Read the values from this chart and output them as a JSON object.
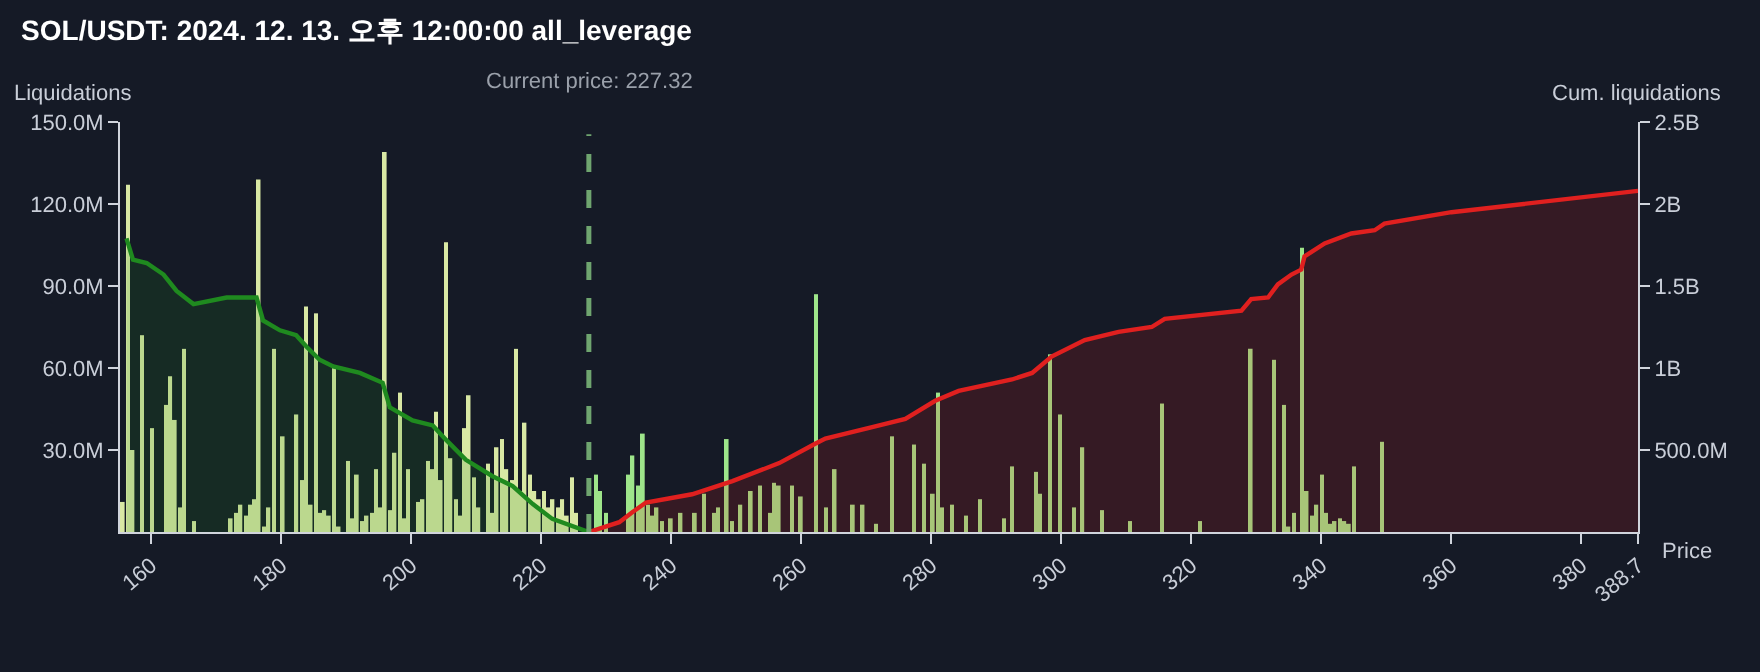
{
  "chart_data": {
    "type": "bar",
    "title": "SOL/USDT: 2024. 12. 13. 오후 12:00:00 all_leverage",
    "xlabel": "Price",
    "ylabel": "Liquidations",
    "y2label": "Cum. liquidations",
    "xlim": [
      155.2,
      388.7
    ],
    "xticks": [
      160,
      180,
      200,
      220,
      240,
      260,
      280,
      300,
      320,
      340,
      360,
      380,
      388.7
    ],
    "ylim": [
      0,
      150000000
    ],
    "yticks": [
      {
        "value": 30000000,
        "label": "30.0M"
      },
      {
        "value": 60000000,
        "label": "60.0M"
      },
      {
        "value": 90000000,
        "label": "90.0M"
      },
      {
        "value": 120000000,
        "label": "120.0M"
      },
      {
        "value": 150000000,
        "label": "150.0M"
      }
    ],
    "y2lim": [
      0,
      2500000000
    ],
    "y2ticks": [
      {
        "value": 500000000,
        "label": "500.0M"
      },
      {
        "value": 1000000000,
        "label": "1B"
      },
      {
        "value": 1500000000,
        "label": "1.5B"
      },
      {
        "value": 2000000000,
        "label": "2B"
      },
      {
        "value": 2500000000,
        "label": "2.5B"
      }
    ],
    "grid": false,
    "ref_lines": [
      {
        "axis": "x",
        "value": 227.32,
        "label": "Current price: 227.32",
        "color": "#6fa56f",
        "line_style": "dashed"
      }
    ],
    "series": [
      {
        "color": "#d9e8a4",
        "x": [
          155.7,
          156.5,
          157.2,
          158.6,
          160.1,
          162.2,
          163.0,
          163.7,
          164.4,
          165.1,
          166.5,
          172.3,
          173.1,
          173.8,
          174.7,
          175.4,
          176.0,
          176.6,
          177.4,
          178.1,
          178.8,
          180.3,
          182.4,
          183.1,
          183.9,
          184.6,
          185.3,
          186.0,
          186.7,
          187.4,
          188.2,
          188.9,
          190.3,
          191.0,
          191.7,
          192.5,
          193.2,
          193.9,
          194.6,
          195.3,
          196.0,
          196.8,
          197.5,
          198.2,
          198.9,
          199.6,
          201.1,
          201.8,
          202.5,
          203.2,
          203.9,
          204.6,
          205.4,
          206.1,
          206.8,
          207.5,
          208.2,
          208.9,
          209.7,
          210.4,
          211.8,
          212.5,
          213.2,
          214.0,
          214.7,
          215.4,
          216.1,
          216.8,
          217.5,
          218.3,
          219.0,
          219.7,
          220.4,
          221.1,
          221.8,
          222.6,
          223.3,
          224.0,
          224.7,
          225.4
        ],
        "values": [
          11000000.0,
          127000000.0,
          30000000.0,
          72000000.0,
          38000000.0,
          46500000.0,
          57000000.0,
          41000000.0,
          9000000.0,
          67000000.0,
          4000000.0,
          5000000.0,
          7000000.0,
          10000000.0,
          6000000.0,
          10000000.0,
          12000000.0,
          129000000.0,
          2000000.0,
          9000000.0,
          67000000.0,
          35000000.0,
          43000000.0,
          19000000.0,
          82500000.0,
          10000000.0,
          80000000.0,
          7000000.0,
          8000000.0,
          6000000.0,
          60000000.0,
          2000000.0,
          26000000.0,
          5000000.0,
          21000000.0,
          4000000.0,
          6000000.0,
          7000000.0,
          23000000.0,
          9000000.0,
          139000000.0,
          8000000.0,
          29000000.0,
          51000000.0,
          5000000.0,
          23000000.0,
          11000000.0,
          12000000.0,
          26000000.0,
          23000000.0,
          44000000.0,
          19000000.0,
          106000000.0,
          27000000.0,
          12000000.0,
          6000000.0,
          38000000.0,
          50000000.0,
          20000000.0,
          9000000.0,
          25000000.0,
          7000000.0,
          31000000.0,
          34000000.0,
          23000000.0,
          19000000.0,
          67000000.0,
          15000000.0,
          40000000.0,
          21000000.0,
          15000000.0,
          12000000.0,
          15000000.0,
          9000000.0,
          12000000.0,
          9000000.0,
          12000000.0,
          6000000.0,
          20000000.0,
          7000000.0
        ]
      },
      {
        "color": "#9ee58a",
        "x": [
          228.4,
          229.1,
          229.9,
          233.4,
          234.1,
          234.9,
          235.7,
          236.4,
          237.1,
          237.8,
          238.5,
          240.0,
          241.5,
          243.7,
          245.0,
          246.5,
          247.1,
          248.6,
          249.4,
          250.7,
          252.3,
          253.7,
          255.1,
          255.8,
          256.6,
          258.6,
          260.0,
          262.3,
          263.7,
          265.2,
          268.0,
          269.5,
          271.5,
          273.9,
          277.4,
          278.9,
          280.3,
          281.0,
          281.7,
          283.2,
          285.3,
          287.5,
          291.1,
          292.5,
          296.1,
          296.8,
          298.3,
          299.8,
          301.9,
          303.3,
          306.2,
          310.6,
          315.5,
          321.3,
          329.2,
          332.8,
          334.2,
          335.0,
          335.7,
          337.0,
          337.8,
          338.6,
          339.3,
          340.0,
          340.7,
          341.4,
          342.1,
          342.9,
          343.6,
          344.3,
          345.0,
          349.4
        ],
        "values": [
          21000000.0,
          15000000.0,
          7000000.0,
          21000000.0,
          28000000.0,
          17000000.0,
          36000000.0,
          10000000.0,
          6000000.0,
          9000000.0,
          4000000.0,
          5000000.0,
          7000000.0,
          7000000.0,
          14000000.0,
          7000000.0,
          9000000.0,
          34000000.0,
          4000000.0,
          10000000.0,
          15000000.0,
          17000000.0,
          7000000.0,
          18000000.0,
          17000000.0,
          17000000.0,
          13000000.0,
          87000000.0,
          9000000.0,
          23000000.0,
          10000000.0,
          10000000.0,
          3000000.0,
          35000000.0,
          32000000.0,
          25000000.0,
          14000000.0,
          51000000.0,
          9000000.0,
          10000000.0,
          6000000.0,
          12000000.0,
          5000000.0,
          24000000.0,
          22000000.0,
          14000000.0,
          65000000.0,
          43000000.0,
          9000000.0,
          31000000.0,
          8000000.0,
          4000000.0,
          47000000.0,
          4000000.0,
          67000000.0,
          63000000.0,
          46500000.0,
          2000000.0,
          7000000.0,
          104000000.0,
          15000000.0,
          6000000.0,
          10000000.0,
          21000000.0,
          7000000.0,
          3000000.0,
          4000000.0,
          5000000.0,
          4000000.0,
          3000000.0,
          24000000.0,
          33000000.0
        ]
      },
      {
        "type": "area",
        "axis": "y2",
        "color": "#1f8a1f",
        "x": [
          156.2,
          157.2,
          159.3,
          161.9,
          163.9,
          166.5,
          171.6,
          176.2,
          177.2,
          179.8,
          182.3,
          183.9,
          185.9,
          188.0,
          192.1,
          195.6,
          196.7,
          200.2,
          203.3,
          205.4,
          208.4,
          212.5,
          215.6,
          218.7,
          221.7,
          227.32
        ],
        "values": [
          1790000000.0,
          1660000000.0,
          1640000000.0,
          1570000000.0,
          1470000000.0,
          1390000000.0,
          1430000000.0,
          1430000000.0,
          1290000000.0,
          1230000000.0,
          1200000000.0,
          1130000000.0,
          1050000000.0,
          1010000000.0,
          970000000.0,
          910000000.0,
          760000000.0,
          680000000.0,
          650000000.0,
          560000000.0,
          440000000.0,
          340000000.0,
          280000000.0,
          170000000.0,
          80000000.0,
          0
        ]
      },
      {
        "type": "area",
        "axis": "y2",
        "color": "#e0201f",
        "x": [
          227.32,
          232.0,
          234.0,
          236.1,
          243.2,
          249.4,
          256.6,
          262.2,
          263.7,
          270.9,
          276.0,
          280.6,
          284.2,
          292.4,
          295.5,
          298.5,
          303.6,
          308.8,
          313.9,
          315.9,
          327.7,
          329.2,
          331.8,
          333.3,
          335.4,
          336.9,
          337.4,
          340.5,
          344.6,
          348.2,
          349.7,
          360.0,
          388.7
        ],
        "values": [
          0,
          60000000.0,
          120000000.0,
          180000000.0,
          230000000.0,
          310000000.0,
          420000000.0,
          540000000.0,
          570000000.0,
          640000000.0,
          690000000.0,
          800000000.0,
          860000000.0,
          930000000.0,
          970000000.0,
          1070000000.0,
          1170000000.0,
          1220000000.0,
          1250000000.0,
          1300000000.0,
          1350000000.0,
          1420000000.0,
          1430000000.0,
          1510000000.0,
          1570000000.0,
          1600000000.0,
          1680000000.0,
          1760000000.0,
          1820000000.0,
          1840000000.0,
          1880000000.0,
          1950000000.0,
          2080000000.0
        ]
      }
    ]
  }
}
